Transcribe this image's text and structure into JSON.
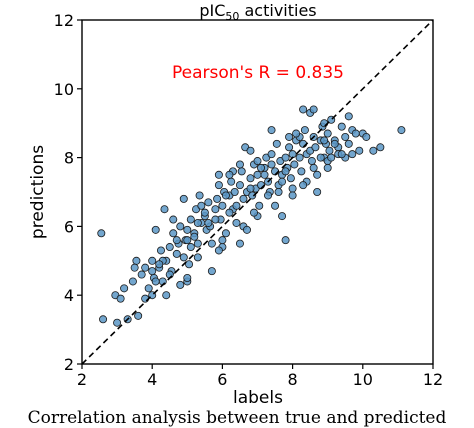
{
  "chart_data": {
    "type": "scatter",
    "title": "pIC",
    "title_subscript": "50",
    "title_suffix": " activities",
    "xlabel": "labels",
    "ylabel": "predictions",
    "xlim": [
      2,
      12
    ],
    "ylim": [
      2,
      12
    ],
    "xticks": [
      2,
      4,
      6,
      8,
      10,
      12
    ],
    "yticks": [
      2,
      4,
      6,
      8,
      10,
      12
    ],
    "annotation": "Pearson's R = 0.835",
    "annotation_color": "#ff0000",
    "point_color": "#5b96c6",
    "point_edge_color": "#1a1a1a",
    "reference_line": {
      "from": [
        2,
        2
      ],
      "to": [
        12,
        12
      ],
      "style": "dashed",
      "color": "#000000"
    },
    "grid": false,
    "points": {
      "x": [
        2.55,
        2.95,
        3.1,
        3.2,
        3.3,
        3.45,
        3.55,
        3.6,
        3.7,
        3.8,
        3.9,
        4.0,
        4.05,
        4.1,
        4.2,
        4.25,
        4.3,
        4.35,
        4.4,
        4.5,
        4.55,
        4.6,
        4.7,
        4.75,
        4.8,
        4.9,
        4.95,
        5.0,
        5.05,
        5.1,
        5.2,
        5.25,
        5.3,
        5.35,
        5.4,
        5.5,
        5.55,
        5.6,
        5.65,
        5.7,
        5.8,
        5.85,
        5.9,
        5.95,
        6.0,
        6.05,
        6.1,
        6.2,
        6.25,
        6.3,
        6.35,
        6.4,
        6.5,
        6.55,
        6.6,
        6.65,
        6.7,
        6.8,
        6.85,
        6.9,
        6.95,
        7.0,
        7.05,
        7.1,
        7.2,
        7.25,
        7.3,
        7.35,
        7.4,
        7.5,
        7.55,
        7.6,
        7.65,
        7.7,
        7.8,
        7.85,
        7.9,
        7.95,
        8.0,
        8.05,
        8.1,
        8.2,
        8.25,
        8.3,
        8.35,
        8.4,
        8.5,
        8.55,
        8.6,
        8.65,
        8.7,
        8.8,
        8.85,
        8.9,
        8.95,
        9.0,
        9.05,
        9.1,
        9.2,
        9.3,
        9.4,
        9.5,
        9.6,
        9.7,
        9.8,
        9.9,
        10.0,
        10.5,
        11.1,
        4.3,
        4.9,
        5.2,
        5.8,
        6.2,
        6.8,
        7.2,
        7.8,
        8.2,
        8.8,
        9.2,
        5.0,
        6.0,
        7.0,
        8.0,
        9.0,
        4.6,
        5.4,
        6.4,
        7.4,
        8.4,
        3.5,
        4.2,
        5.1,
        5.6,
        6.1,
        6.6,
        7.1,
        7.6,
        8.1,
        8.6,
        9.1,
        9.6,
        4.8,
        5.3,
        5.9,
        6.3,
        6.9,
        7.3,
        7.9,
        8.3,
        8.9,
        9.3,
        4.0,
        4.5,
        5.5,
        6.5,
        7.5,
        8.5,
        9.5,
        10.1,
        10.3,
        2.6,
        3.0,
        4.4,
        5.7,
        6.7,
        7.7,
        8.7,
        9.7,
        5.0,
        6.2,
        7.4,
        8.6,
        4.1,
        5.3,
        6.5,
        7.7,
        8.9,
        3.8,
        9.0,
        8.0,
        7.0,
        6.0,
        5.0,
        4.0,
        6.8,
        8.3,
        9.4,
        7.8,
        4.7,
        5.9
      ],
      "y": [
        5.8,
        4.0,
        3.9,
        4.2,
        3.3,
        4.4,
        5.0,
        3.4,
        4.6,
        4.8,
        4.2,
        5.0,
        4.5,
        5.9,
        4.8,
        5.3,
        4.4,
        6.5,
        5.0,
        5.4,
        4.7,
        5.8,
        5.2,
        5.5,
        6.0,
        6.8,
        5.6,
        5.9,
        4.9,
        6.2,
        5.8,
        6.5,
        5.5,
        6.9,
        6.1,
        6.3,
        5.9,
        6.7,
        6.0,
        5.5,
        6.5,
        6.8,
        7.5,
        6.2,
        6.6,
        7.0,
        5.8,
        6.9,
        7.3,
        6.5,
        7.0,
        6.6,
        7.2,
        7.6,
        6.8,
        8.3,
        7.0,
        7.4,
        6.9,
        7.8,
        7.1,
        7.5,
        6.6,
        7.2,
        7.7,
        8.0,
        7.3,
        7.0,
        7.8,
        7.6,
        8.4,
        7.2,
        7.9,
        7.5,
        8.0,
        7.7,
        8.3,
        7.4,
        8.1,
        7.8,
        8.5,
        8.0,
        7.6,
        8.4,
        8.8,
        8.1,
        8.2,
        7.9,
        8.6,
        8.3,
        7.5,
        8.5,
        8.9,
        8.0,
        8.4,
        8.7,
        8.2,
        9.1,
        8.5,
        8.3,
        8.9,
        8.6,
        8.4,
        8.8,
        8.7,
        8.2,
        8.7,
        8.3,
        8.8,
        5.0,
        5.1,
        5.7,
        6.2,
        6.4,
        7.1,
        7.5,
        7.6,
        8.6,
        8.0,
        8.4,
        4.4,
        5.4,
        6.3,
        7.1,
        7.9,
        6.2,
        6.6,
        6.1,
        8.1,
        7.3,
        4.8,
        4.9,
        5.4,
        6.1,
        6.9,
        6.0,
        7.7,
        7.0,
        8.7,
        7.7,
        8.0,
        9.2,
        4.3,
        5.1,
        5.3,
        7.6,
        6.4,
        6.9,
        8.6,
        7.2,
        9.0,
        8.1,
        4.0,
        4.6,
        6.4,
        7.8,
        6.6,
        9.3,
        8.0,
        8.6,
        8.2,
        3.3,
        3.2,
        4.0,
        4.7,
        5.9,
        6.3,
        7.0,
        8.1,
        5.6,
        7.5,
        8.8,
        9.4,
        4.4,
        6.1,
        5.5,
        7.3,
        8.5,
        3.9,
        7.7,
        6.9,
        7.9,
        5.6,
        4.5,
        4.7,
        8.2,
        9.4,
        8.1,
        5.6,
        5.6,
        7.2
      ]
    }
  },
  "caption": "Correlation analysis between true and predicted"
}
